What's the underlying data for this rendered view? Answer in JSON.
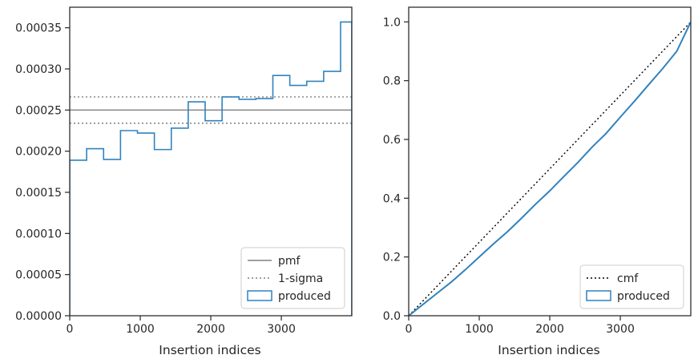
{
  "chart_data": [
    {
      "type": "step-histogram",
      "xlabel": "Insertion indices",
      "ylabel": "",
      "xlim": [
        0,
        3999
      ],
      "ylim": [
        0,
        0.000375
      ],
      "xticks": [
        0,
        1000,
        2000,
        3000
      ],
      "xtick_labels": [
        "0",
        "1000",
        "2000",
        "3000"
      ],
      "yticks": [
        0,
        5e-05,
        0.0001,
        0.00015,
        0.0002,
        0.00025,
        0.0003,
        0.00035
      ],
      "ytick_labels": [
        "0.00000",
        "0.00005",
        "0.00010",
        "0.00015",
        "0.00020",
        "0.00025",
        "0.00030",
        "0.00035"
      ],
      "bin_edges": [
        0,
        240,
        480,
        720,
        960,
        1200,
        1440,
        1680,
        1920,
        2160,
        2400,
        2640,
        2880,
        3120,
        3360,
        3600,
        3840,
        3999
      ],
      "bin_edges_note": "",
      "series": [
        {
          "name": "produced",
          "kind": "histogram-step",
          "color": "#3182bd",
          "values": [
            0.000189,
            0.000203,
            0.00019,
            0.000225,
            0.000222,
            0.000202,
            0.000228,
            0.00026,
            0.000237,
            0.000266,
            0.000263,
            0.000264,
            0.000292,
            0.00028,
            0.000285,
            0.000297,
            0.000357
          ]
        }
      ],
      "reference_lines": [
        {
          "name": "pmf",
          "y": 0.00025,
          "style": "solid",
          "color": "#808080"
        },
        {
          "name": "1-sigma",
          "y": 0.000266,
          "style": "dotted",
          "color": "#808080"
        },
        {
          "name": "1-sigma-lower",
          "y": 0.000234,
          "style": "dotted",
          "color": "#808080"
        }
      ],
      "legend": {
        "placement": "lower-right",
        "entries": [
          {
            "label": "pmf",
            "style": "solid-line",
            "color": "#808080"
          },
          {
            "label": "1-sigma",
            "style": "dotted-line",
            "color": "#808080"
          },
          {
            "label": "produced",
            "style": "box",
            "color": "#3182bd"
          }
        ]
      },
      "grid": false
    },
    {
      "type": "line",
      "xlabel": "Insertion indices",
      "ylabel": "",
      "xlim": [
        0,
        3999
      ],
      "ylim": [
        0,
        1.05
      ],
      "xticks": [
        0,
        1000,
        2000,
        3000
      ],
      "xtick_labels": [
        "0",
        "1000",
        "2000",
        "3000"
      ],
      "yticks": [
        0,
        0.2,
        0.4,
        0.6,
        0.8,
        1.0
      ],
      "ytick_labels": [
        "0.0",
        "0.2",
        "0.4",
        "0.6",
        "0.8",
        "1.0"
      ],
      "series": [
        {
          "name": "cmf",
          "kind": "dotted-line",
          "color": "#000000",
          "x": [
            0,
            3999
          ],
          "y": [
            0,
            1.0
          ]
        },
        {
          "name": "produced",
          "kind": "cumulative-step",
          "color": "#3182bd",
          "x": [
            0,
            200,
            400,
            600,
            800,
            1000,
            1200,
            1400,
            1600,
            1800,
            2000,
            2200,
            2400,
            2600,
            2800,
            3000,
            3200,
            3400,
            3600,
            3800,
            3999
          ],
          "y": [
            0,
            0.038,
            0.076,
            0.114,
            0.156,
            0.2,
            0.244,
            0.286,
            0.332,
            0.38,
            0.425,
            0.474,
            0.522,
            0.574,
            0.621,
            0.676,
            0.73,
            0.786,
            0.841,
            0.9,
            1.0
          ]
        }
      ],
      "legend": {
        "placement": "lower-right",
        "entries": [
          {
            "label": "cmf",
            "style": "dotted-line",
            "color": "#000000"
          },
          {
            "label": "produced",
            "style": "box",
            "color": "#3182bd"
          }
        ]
      },
      "grid": false
    }
  ]
}
